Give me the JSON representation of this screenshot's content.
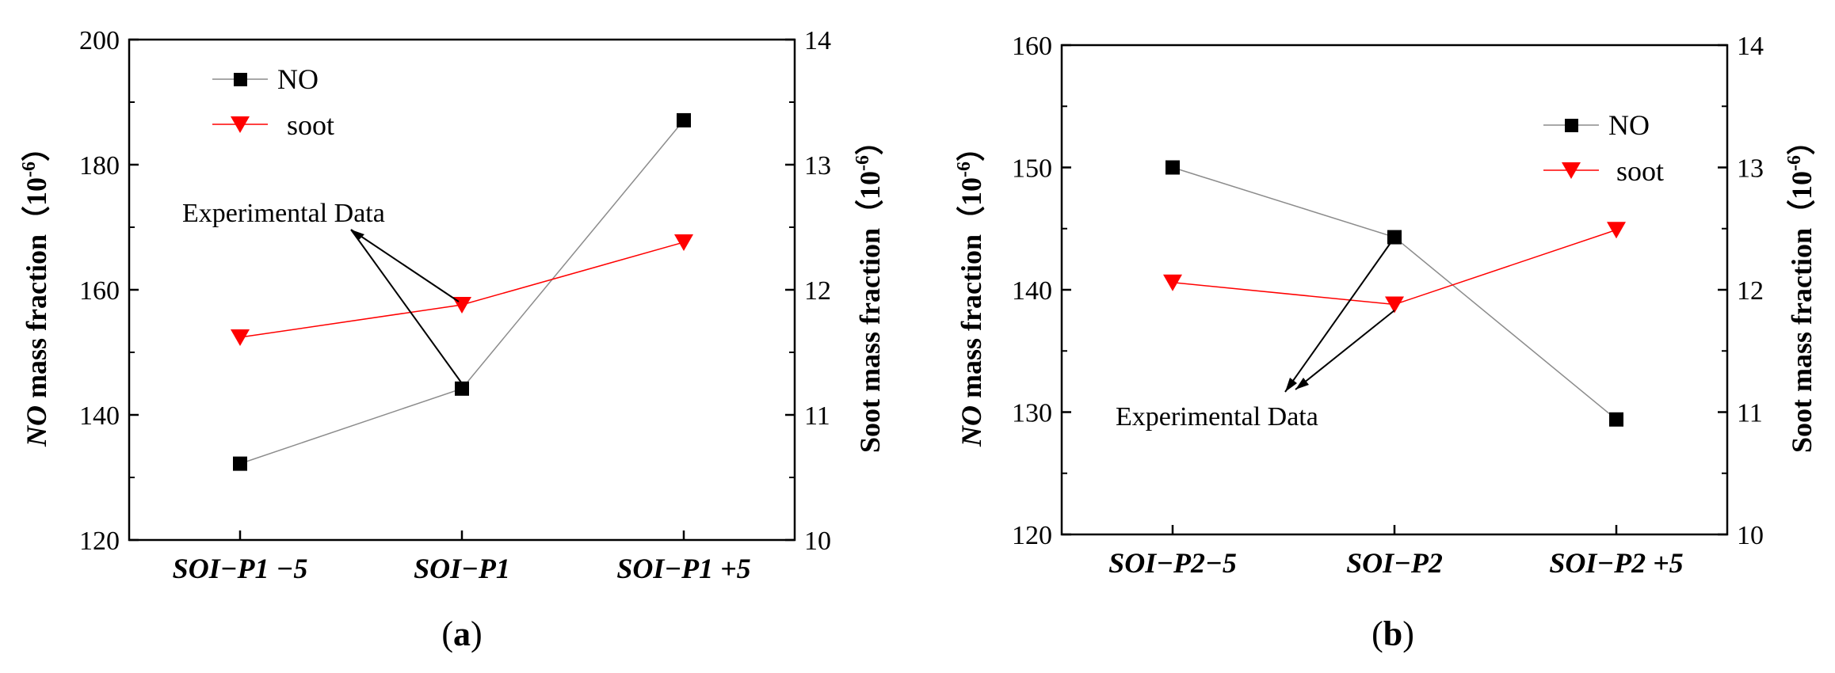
{
  "chart_data": [
    {
      "type": "line",
      "panel_label": "(a)",
      "panel_letter": "a",
      "categories": [
        "SOI−P1 −5",
        "SOI−P1",
        "SOI−P1 +5"
      ],
      "series": [
        {
          "name": "NO",
          "axis": "left",
          "color": "#000000",
          "marker": "square",
          "values": [
            132.2,
            144.2,
            187.1
          ]
        },
        {
          "name": "soot",
          "axis": "right",
          "color": "#ff0000",
          "marker": "triangle-down",
          "values": [
            11.62,
            11.88,
            12.38
          ]
        }
      ],
      "ylabel_left": {
        "italic": "NO",
        "rest": " mass fraction（10",
        "sup": "-6",
        "end": "）"
      },
      "ylabel_right": {
        "text": "Soot mass fraction（10",
        "sup": "-6",
        "end": "）"
      },
      "ylim_left": [
        120,
        200
      ],
      "yticks_left": [
        120,
        140,
        160,
        180,
        200
      ],
      "ylim_right": [
        10,
        14
      ],
      "yticks_right": [
        10,
        11,
        12,
        13,
        14
      ],
      "legend_position": "top-left",
      "annotation": {
        "text": "Experimental Data"
      }
    },
    {
      "type": "line",
      "panel_label": "(b)",
      "panel_letter": "b",
      "categories": [
        "SOI−P2−5",
        "SOI−P2",
        "SOI−P2 +5"
      ],
      "series": [
        {
          "name": "NO",
          "axis": "left",
          "color": "#000000",
          "marker": "square",
          "values": [
            150.0,
            144.3,
            129.4
          ]
        },
        {
          "name": "soot",
          "axis": "right",
          "color": "#ff0000",
          "marker": "triangle-down",
          "values": [
            12.06,
            11.88,
            12.49
          ]
        }
      ],
      "ylabel_left": {
        "italic": "NO",
        "rest": " mass fraction（10",
        "sup": "-6",
        "end": "）"
      },
      "ylabel_right": {
        "text": "Soot mass fraction（10",
        "sup": "-6",
        "end": "）"
      },
      "ylim_left": [
        120,
        160
      ],
      "yticks_left": [
        120,
        130,
        140,
        150,
        160
      ],
      "ylim_right": [
        10,
        14
      ],
      "yticks_right": [
        10,
        11,
        12,
        13,
        14
      ],
      "legend_position": "top-right",
      "annotation": {
        "text": "Experimental Data"
      }
    }
  ]
}
